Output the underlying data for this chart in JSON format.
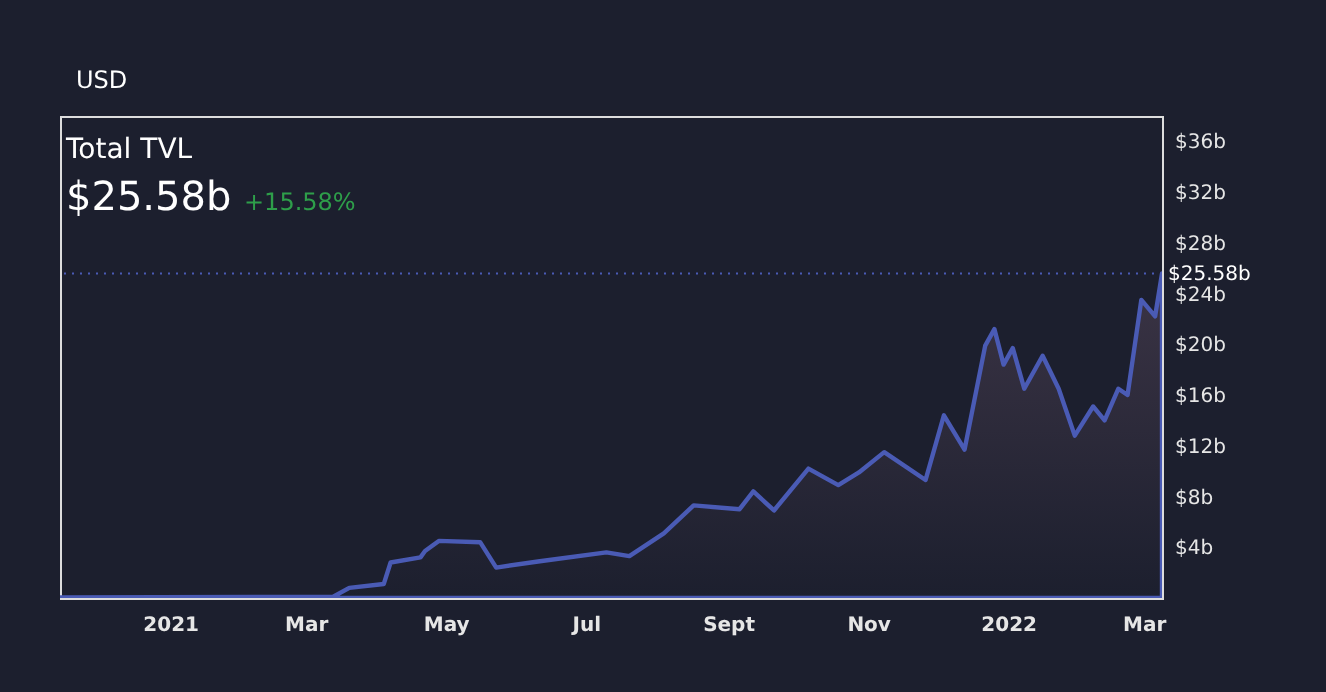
{
  "chart_data": {
    "type": "area",
    "title": "Total TVL",
    "subtitle": "$25.58b",
    "annotations": [
      "USD",
      "+15.58%"
    ],
    "x": [
      "2020-11-14",
      "2021-03-13",
      "2021-03-20",
      "2021-04-04",
      "2021-04-07",
      "2021-04-20",
      "2021-04-22",
      "2021-04-28",
      "2021-05-16",
      "2021-05-23",
      "2021-06-11",
      "2021-07-10",
      "2021-07-20",
      "2021-08-04",
      "2021-08-17",
      "2021-09-06",
      "2021-09-12",
      "2021-09-21",
      "2021-10-06",
      "2021-10-19",
      "2021-10-28",
      "2021-11-08",
      "2021-11-26",
      "2021-12-04",
      "2021-12-13",
      "2021-12-22",
      "2021-12-26",
      "2021-12-30",
      "2022-01-03",
      "2022-01-08",
      "2022-01-16",
      "2022-01-23",
      "2022-01-30",
      "2022-02-07",
      "2022-02-12",
      "2022-02-18",
      "2022-02-22",
      "2022-02-28",
      "2022-03-06",
      "2022-03-09"
    ],
    "series": [
      {
        "color": "#4a5bb5",
        "values": [
          0.05,
          0.1,
          0.8,
          1.1,
          2.8,
          3.2,
          3.7,
          4.5,
          4.4,
          2.4,
          2.9,
          3.6,
          3.3,
          5.1,
          7.3,
          7.0,
          8.4,
          6.9,
          10.2,
          8.9,
          9.9,
          11.5,
          9.3,
          14.4,
          11.7,
          19.9,
          21.2,
          18.4,
          19.7,
          16.5,
          19.1,
          16.5,
          12.8,
          15.1,
          14.0,
          16.5,
          16.0,
          23.5,
          22.2,
          25.58
        ]
      }
    ],
    "xlim": [
      "2020-11-14",
      "2022-03-09"
    ],
    "xticks": [
      {
        "value": "2021-01-01",
        "label": "2021"
      },
      {
        "value": "2021-03-01",
        "label": "Mar"
      },
      {
        "value": "2021-05-01",
        "label": "May"
      },
      {
        "value": "2021-07-01",
        "label": "Jul"
      },
      {
        "value": "2021-09-01",
        "label": "Sept"
      },
      {
        "value": "2021-11-01",
        "label": "Nov"
      },
      {
        "value": "2022-01-01",
        "label": "2022"
      },
      {
        "value": "2022-03-01",
        "label": "Mar"
      }
    ],
    "ylim": [
      0,
      38
    ],
    "yticks": [
      {
        "value": 4,
        "label": "$4b"
      },
      {
        "value": 8,
        "label": "$8b"
      },
      {
        "value": 12,
        "label": "$12b"
      },
      {
        "value": 16,
        "label": "$16b"
      },
      {
        "value": 20,
        "label": "$20b"
      },
      {
        "value": 24,
        "label": "$24b"
      },
      {
        "value": 28,
        "label": "$28b"
      },
      {
        "value": 32,
        "label": "$32b"
      },
      {
        "value": 36,
        "label": "$36b"
      }
    ],
    "ref_lines": [
      {
        "axis": "y",
        "value": 25.58,
        "label": "$25.58b",
        "color": "#4a5bb5",
        "line_style": "dotted"
      }
    ],
    "grid": false
  }
}
